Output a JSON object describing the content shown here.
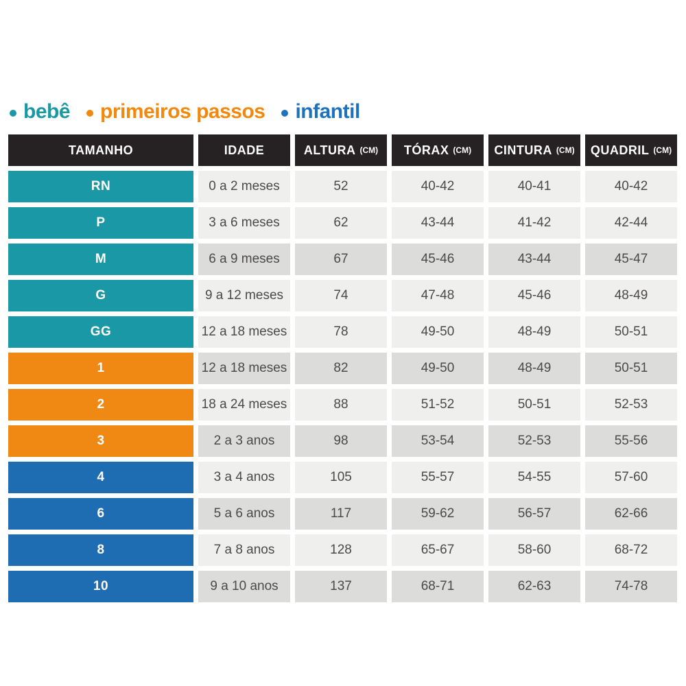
{
  "legend": {
    "items": [
      {
        "label": "bebê",
        "color": "#1b98a5"
      },
      {
        "label": "primeiros passos",
        "color": "#f0890d"
      },
      {
        "label": "infantil",
        "color": "#1c72bd"
      }
    ]
  },
  "table": {
    "columns": [
      {
        "label": "TAMANHO",
        "unit": ""
      },
      {
        "label": "IDADE",
        "unit": ""
      },
      {
        "label": "ALTURA",
        "unit": "(CM)"
      },
      {
        "label": "TÓRAX",
        "unit": "(CM)"
      },
      {
        "label": "CINTURA",
        "unit": "(CM)"
      },
      {
        "label": "QUADRIL",
        "unit": "(CM)"
      }
    ],
    "rows": [
      {
        "size": "RN",
        "age": "0 a 2 meses",
        "height": "52",
        "chest": "40-42",
        "waist": "40-41",
        "hip": "40-42",
        "group": "bebe",
        "shade": "light"
      },
      {
        "size": "P",
        "age": "3 a 6 meses",
        "height": "62",
        "chest": "43-44",
        "waist": "41-42",
        "hip": "42-44",
        "group": "bebe",
        "shade": "light"
      },
      {
        "size": "M",
        "age": "6 a 9 meses",
        "height": "67",
        "chest": "45-46",
        "waist": "43-44",
        "hip": "45-47",
        "group": "bebe",
        "shade": "dark"
      },
      {
        "size": "G",
        "age": "9 a 12 meses",
        "height": "74",
        "chest": "47-48",
        "waist": "45-46",
        "hip": "48-49",
        "group": "bebe",
        "shade": "light"
      },
      {
        "size": "GG",
        "age": "12 a 18 meses",
        "height": "78",
        "chest": "49-50",
        "waist": "48-49",
        "hip": "50-51",
        "group": "bebe",
        "shade": "light"
      },
      {
        "size": "1",
        "age": "12 a 18 meses",
        "height": "82",
        "chest": "49-50",
        "waist": "48-49",
        "hip": "50-51",
        "group": "passos",
        "shade": "dark"
      },
      {
        "size": "2",
        "age": "18 a 24 meses",
        "height": "88",
        "chest": "51-52",
        "waist": "50-51",
        "hip": "52-53",
        "group": "passos",
        "shade": "light"
      },
      {
        "size": "3",
        "age": "2 a 3 anos",
        "height": "98",
        "chest": "53-54",
        "waist": "52-53",
        "hip": "55-56",
        "group": "passos",
        "shade": "dark"
      },
      {
        "size": "4",
        "age": "3 a 4 anos",
        "height": "105",
        "chest": "55-57",
        "waist": "54-55",
        "hip": "57-60",
        "group": "infantil",
        "shade": "light"
      },
      {
        "size": "6",
        "age": "5 a 6 anos",
        "height": "117",
        "chest": "59-62",
        "waist": "56-57",
        "hip": "62-66",
        "group": "infantil",
        "shade": "dark"
      },
      {
        "size": "8",
        "age": "7 a 8 anos",
        "height": "128",
        "chest": "65-67",
        "waist": "58-60",
        "hip": "68-72",
        "group": "infantil",
        "shade": "light"
      },
      {
        "size": "10",
        "age": "9 a 10 anos",
        "height": "137",
        "chest": "68-71",
        "waist": "62-63",
        "hip": "74-78",
        "group": "infantil",
        "shade": "dark"
      }
    ]
  },
  "colors": {
    "bebe": "#1b98a5",
    "passos": "#ef8913",
    "infantil": "#1e6cb2",
    "header_bg": "#262223",
    "row_light": "#efefee",
    "row_dark": "#dcdcdb",
    "text": "#4b4949"
  }
}
